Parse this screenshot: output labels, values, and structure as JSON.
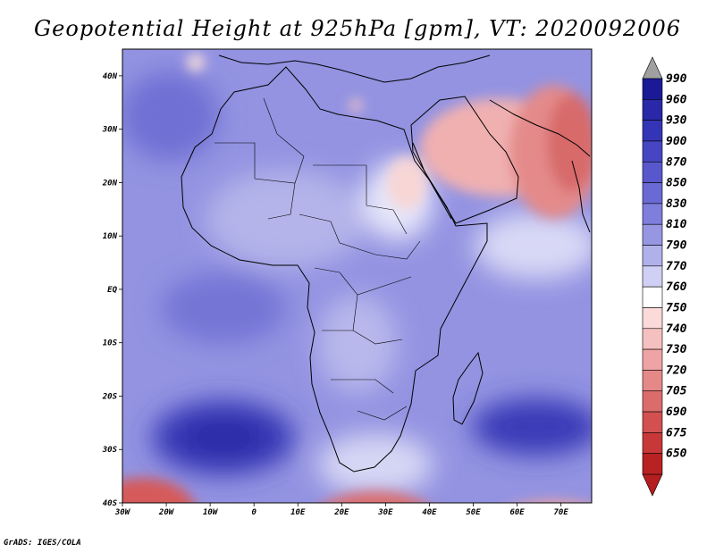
{
  "title": "Geopotential Height at 925hPa [gpm], VT: 2020092006",
  "credit": "GrADS: IGES/COLA",
  "map": {
    "lat_range": [
      -40,
      45
    ],
    "lon_range": [
      -30,
      77
    ],
    "lat_labels": [
      {
        "value": 40,
        "text": "40N"
      },
      {
        "value": 30,
        "text": "30N"
      },
      {
        "value": 20,
        "text": "20N"
      },
      {
        "value": 10,
        "text": "10N"
      },
      {
        "value": 0,
        "text": "EQ"
      },
      {
        "value": -10,
        "text": "10S"
      },
      {
        "value": -20,
        "text": "20S"
      },
      {
        "value": -30,
        "text": "30S"
      },
      {
        "value": -40,
        "text": "40S"
      }
    ],
    "lon_labels": [
      {
        "value": -30,
        "text": "30W"
      },
      {
        "value": -20,
        "text": "20W"
      },
      {
        "value": -10,
        "text": "10W"
      },
      {
        "value": 0,
        "text": "0"
      },
      {
        "value": 10,
        "text": "10E"
      },
      {
        "value": 20,
        "text": "20E"
      },
      {
        "value": 30,
        "text": "30E"
      },
      {
        "value": 40,
        "text": "40E"
      },
      {
        "value": 50,
        "text": "50E"
      },
      {
        "value": 60,
        "text": "60E"
      },
      {
        "value": 70,
        "text": "70E"
      }
    ],
    "background_color": "#9393e2"
  },
  "colorbar": {
    "levels": [
      {
        "label": "990",
        "color": "#1a1a96"
      },
      {
        "label": "960",
        "color": "#2828a8"
      },
      {
        "label": "930",
        "color": "#3434b6"
      },
      {
        "label": "900",
        "color": "#4646c2"
      },
      {
        "label": "870",
        "color": "#5858cc"
      },
      {
        "label": "850",
        "color": "#6a6ad4"
      },
      {
        "label": "830",
        "color": "#7e7edc"
      },
      {
        "label": "810",
        "color": "#9696e2"
      },
      {
        "label": "790",
        "color": "#b0b0ea"
      },
      {
        "label": "770",
        "color": "#d0d0f4"
      },
      {
        "label": "760",
        "color": "#ffffff"
      },
      {
        "label": "750",
        "color": "#fbdada"
      },
      {
        "label": "740",
        "color": "#f5c0c0"
      },
      {
        "label": "730",
        "color": "#eea4a4"
      },
      {
        "label": "720",
        "color": "#e48888"
      },
      {
        "label": "705",
        "color": "#dc6c6c"
      },
      {
        "label": "690",
        "color": "#d25050"
      },
      {
        "label": "675",
        "color": "#c83838"
      },
      {
        "label": "650",
        "color": "#b82222"
      }
    ],
    "top_arrow_color": "#a0a0a0",
    "bottom_arrow_color": "#b41e1e"
  }
}
